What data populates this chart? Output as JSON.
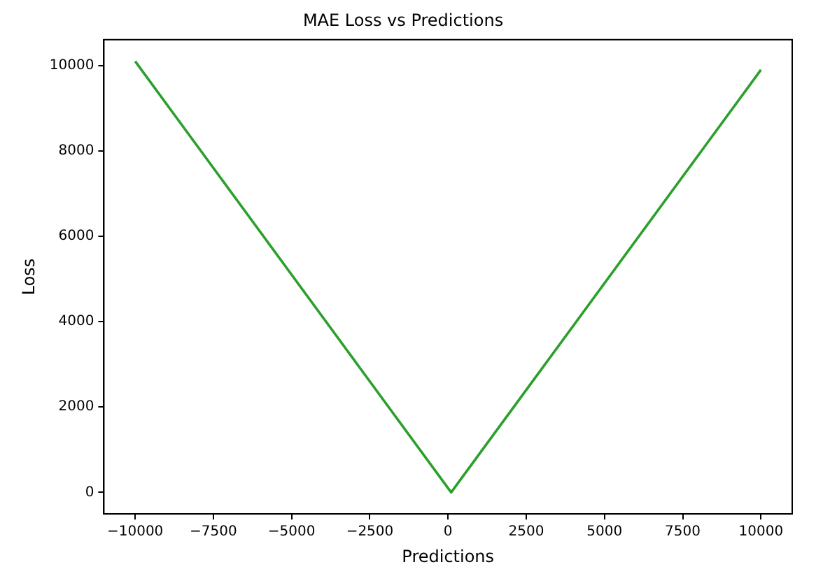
{
  "chart_data": {
    "type": "line",
    "title": "MAE Loss vs Predictions",
    "xlabel": "Predictions",
    "ylabel": "Loss",
    "x": [
      -10000,
      100,
      10000
    ],
    "series": [
      {
        "color": "#2ca02c",
        "values": [
          10100,
          0,
          9900
        ]
      }
    ],
    "xlim": [
      -11000,
      11000
    ],
    "xticks": [
      -10000,
      -7500,
      -5000,
      -2500,
      0,
      2500,
      5000,
      7500,
      10000
    ],
    "ylim": [
      -505,
      10605
    ],
    "yticks": [
      0,
      2000,
      4000,
      6000,
      8000,
      10000
    ],
    "grid": false,
    "legend": false,
    "marker": "none",
    "line_style": "solid"
  }
}
